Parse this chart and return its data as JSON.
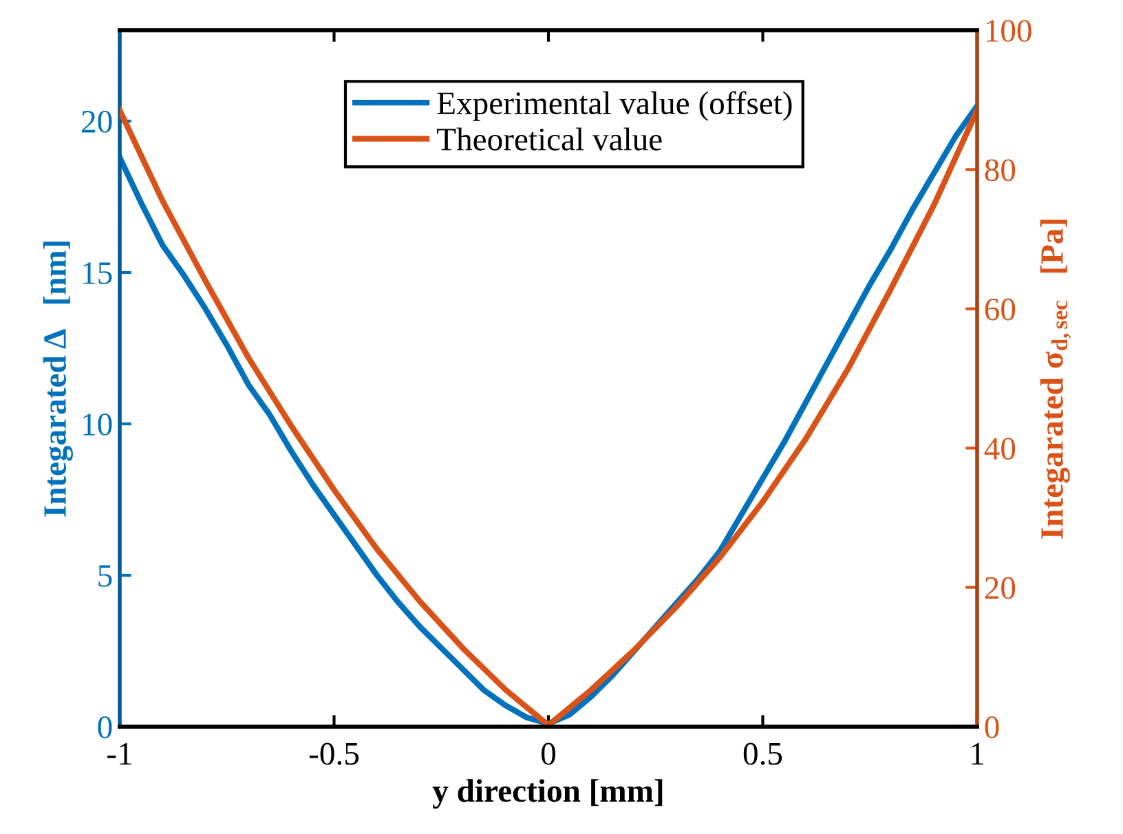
{
  "chart_data": {
    "type": "line",
    "xlabel": "y direction [mm]",
    "ylabel": "Integarated Δ   [nm]",
    "y2label": "Integarated σ$_{d,sec}$   [Pa]",
    "xlim": [
      -1,
      1
    ],
    "xticks": [
      -1,
      -0.5,
      0,
      0.5,
      1
    ],
    "ylim": [
      0,
      23
    ],
    "yticks": [
      0,
      5,
      10,
      15,
      20
    ],
    "y2lim": [
      0,
      100
    ],
    "y2ticks": [
      0,
      20,
      40,
      60,
      80,
      100
    ],
    "legend": "top",
    "grid": false,
    "line_style": "solid",
    "marker": "none",
    "series": [
      {
        "name": "Experimental value (offset)",
        "color": "#0072bd",
        "axis": "y",
        "x": [
          -1,
          -0.95,
          -0.9,
          -0.85,
          -0.8,
          -0.75,
          -0.7,
          -0.65,
          -0.6,
          -0.55,
          -0.5,
          -0.45,
          -0.4,
          -0.35,
          -0.3,
          -0.25,
          -0.2,
          -0.15,
          -0.1,
          -0.05,
          0,
          0.05,
          0.1,
          0.15,
          0.2,
          0.25,
          0.3,
          0.35,
          0.4,
          0.45,
          0.5,
          0.55,
          0.6,
          0.65,
          0.7,
          0.75,
          0.8,
          0.85,
          0.9,
          0.95,
          1
        ],
        "values": [
          18.8,
          17.3,
          15.9,
          14.9,
          13.8,
          12.6,
          11.3,
          10.3,
          9.1,
          8.0,
          7.0,
          6.0,
          5.0,
          4.1,
          3.3,
          2.6,
          1.9,
          1.2,
          0.7,
          0.3,
          0.1,
          0.4,
          1.0,
          1.7,
          2.5,
          3.3,
          4.1,
          4.9,
          5.8,
          7.0,
          8.2,
          9.4,
          10.7,
          12.0,
          13.3,
          14.6,
          15.8,
          17.1,
          18.3,
          19.5,
          20.5
        ]
      },
      {
        "name": "Theoretical value",
        "color": "#d95319",
        "axis": "y2",
        "x": [
          -1,
          -0.9,
          -0.8,
          -0.7,
          -0.6,
          -0.5,
          -0.4,
          -0.3,
          -0.2,
          -0.1,
          0,
          0.1,
          0.2,
          0.3,
          0.4,
          0.5,
          0.6,
          0.7,
          0.8,
          0.9,
          1
        ],
        "values": [
          88.5,
          75.5,
          64.0,
          53.0,
          43.2,
          34.0,
          25.5,
          18.0,
          11.3,
          5.3,
          0.2,
          5.3,
          11.0,
          17.3,
          24.3,
          32.3,
          41.3,
          51.5,
          63.0,
          75.0,
          88.5
        ]
      }
    ]
  }
}
